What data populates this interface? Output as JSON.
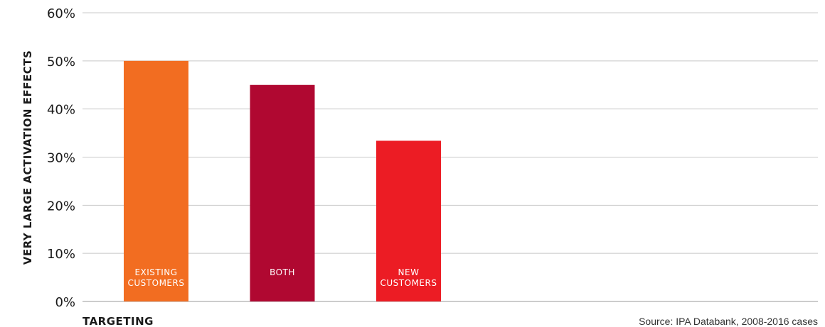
{
  "chart_data": {
    "type": "bar",
    "categories": [
      [
        "EXISTING",
        "CUSTOMERS"
      ],
      [
        "BOTH"
      ],
      [
        "NEW",
        "CUSTOMERS"
      ]
    ],
    "values": [
      50,
      45,
      33.4
    ],
    "colors": [
      "#f26d21",
      "#b00831",
      "#ec1c24"
    ],
    "ylabel": "VERY LARGE ACTIVATION EFFECTS",
    "xlabel": "TARGETING",
    "ylim": [
      0,
      60
    ],
    "yticks": [
      "0%",
      "10%",
      "20%",
      "30%",
      "40%",
      "50%",
      "60%"
    ],
    "grid": true,
    "source": "Source: IPA Databank, 2008-2016 cases"
  }
}
